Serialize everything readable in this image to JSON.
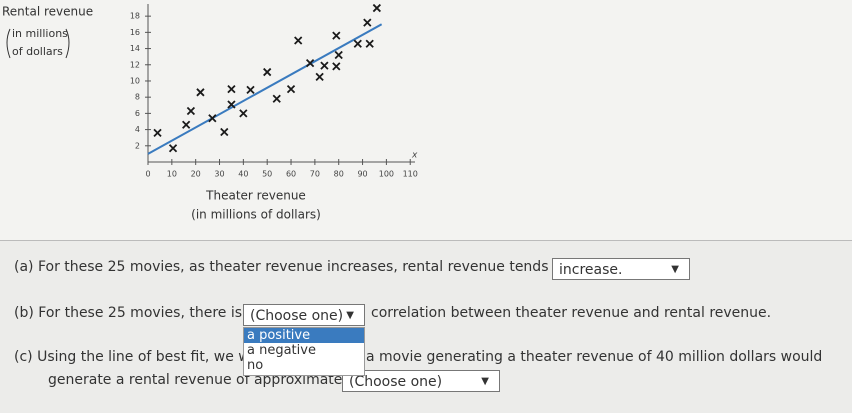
{
  "chart_data": {
    "type": "scatter",
    "y_label": [
      "Rental revenue",
      "in millions",
      "of dollars"
    ],
    "x_label": [
      "Theater revenue",
      "(in millions of dollars)"
    ],
    "x_symbol": "x",
    "color": "#1a1a1a",
    "fit_color": "#3a7bbf",
    "x": [
      4,
      10.5,
      16,
      18,
      22,
      27,
      32,
      35,
      35,
      40,
      43,
      50,
      54,
      60,
      63,
      68,
      72,
      74,
      79,
      80,
      79,
      88,
      93,
      92,
      96
    ],
    "values": [
      3.6,
      1.7,
      4.6,
      6.3,
      8.6,
      5.4,
      3.7,
      9.0,
      7.1,
      6.0,
      8.9,
      11.1,
      7.8,
      9.0,
      15.0,
      12.2,
      10.5,
      11.9,
      11.8,
      13.2,
      15.6,
      14.6,
      14.6,
      17.2,
      19.0
    ],
    "fit": {
      "x": [
        0,
        98
      ],
      "y": [
        1,
        17
      ]
    },
    "xlim": [
      0,
      112
    ],
    "ylim": [
      0,
      19.5
    ],
    "xticks": [
      0,
      10,
      20,
      30,
      40,
      50,
      60,
      70,
      80,
      90,
      100,
      110
    ],
    "yticks": [
      2,
      4,
      6,
      8,
      10,
      12,
      14,
      16,
      18
    ]
  },
  "questions": {
    "a": {
      "text": "(a) For these 25 movies, as theater revenue increases, rental revenue tends to",
      "answer": "increase."
    },
    "b": {
      "before": "(b) For these 25 movies, there is",
      "answer": "(Choose one)",
      "after": "correlation between theater revenue and rental revenue.",
      "options": [
        "a positive",
        "a negative",
        "no"
      ]
    },
    "c": {
      "before": "(c) Using the line of best fit, we w",
      "after": "a movie generating a theater revenue of 40 million dollars would",
      "line2": "generate a rental revenue of approximately",
      "answer": "(Choose one)"
    }
  }
}
